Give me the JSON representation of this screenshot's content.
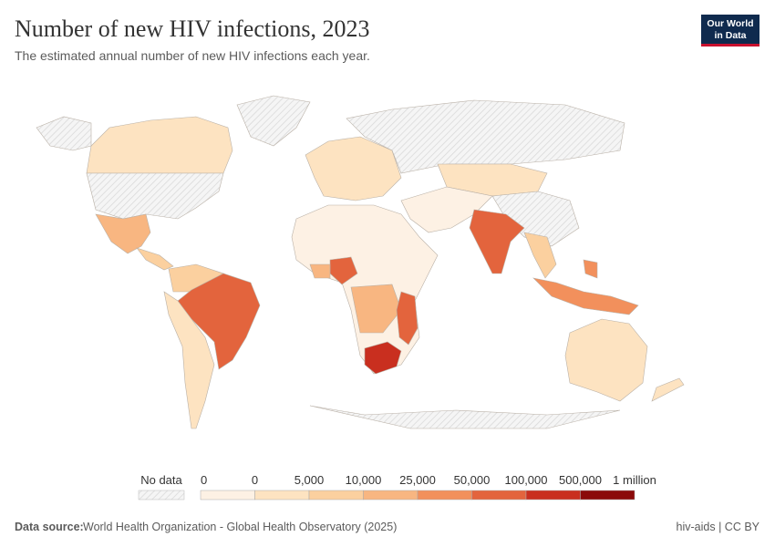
{
  "header": {
    "title": "Number of new HIV infections, 2023",
    "subtitle": "The estimated annual number of new HIV infections each year.",
    "logo": [
      "Our World",
      "in Data"
    ]
  },
  "legend": {
    "no_data": "No data",
    "labels": [
      "0",
      "0",
      "5,000",
      "10,000",
      "25,000",
      "50,000",
      "100,000",
      "500,000",
      "1 million"
    ],
    "colors": [
      "#fdf1e4",
      "#fde3c1",
      "#fbd09f",
      "#f8b681",
      "#f2905c",
      "#e3643d",
      "#c92f1f",
      "#8b0a0a"
    ]
  },
  "footer": {
    "source_label": "Data source:",
    "source": "World Health Organization - Global Health Observatory (2025)",
    "license": "hiv-aids | CC BY"
  }
}
